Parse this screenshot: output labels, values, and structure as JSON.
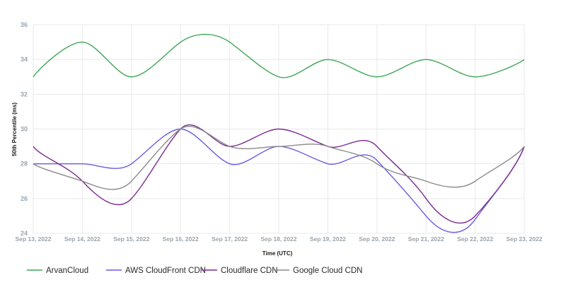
{
  "chart_data": {
    "type": "line",
    "title": "",
    "xlabel": "Time (UTC)",
    "ylabel": "50th Percentile (ms)",
    "ylim": [
      24,
      36
    ],
    "yticks": [
      24,
      26,
      28,
      30,
      32,
      34,
      36
    ],
    "x": [
      "Sep 13, 2022",
      "Sep 14, 2022",
      "Sep 15, 2022",
      "Sep 16, 2022",
      "Sep 17, 2022",
      "Sep 18, 2022",
      "Sep 19, 2022",
      "Sep 20, 2022",
      "Sep 21, 2022",
      "Sep 22, 2022",
      "Sep 23, 2022"
    ],
    "grid": true,
    "legend_position": "bottom",
    "series": [
      {
        "name": "ArvanCloud",
        "color": "#3ea655",
        "values": [
          33,
          35,
          33,
          35,
          35,
          33,
          34,
          33,
          34,
          33,
          34
        ]
      },
      {
        "name": "AWS CloudFront CDN",
        "color": "#6a5ce0",
        "values": [
          28,
          28,
          28,
          30,
          28,
          29,
          28,
          28.2,
          25,
          24.8,
          29
        ]
      },
      {
        "name": "Cloudflare CDN",
        "color": "#7b2b8f",
        "values": [
          29,
          27,
          26,
          30,
          29,
          30,
          29,
          29,
          26,
          25,
          29
        ]
      },
      {
        "name": "Google Cloud CDN",
        "color": "#8a8a8a",
        "values": [
          28,
          27,
          27,
          30,
          29,
          29,
          29,
          28,
          27,
          27,
          29
        ]
      }
    ]
  }
}
